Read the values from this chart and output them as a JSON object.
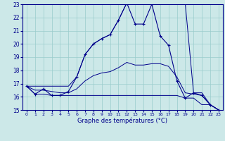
{
  "title": "Graphe des températures (°C)",
  "bg_color": "#cce8e8",
  "line_color": "#00008b",
  "grid_color": "#99cccc",
  "xlim": [
    -0.5,
    23.5
  ],
  "ylim": [
    15,
    23
  ],
  "x_ticks": [
    0,
    1,
    2,
    3,
    4,
    5,
    6,
    7,
    8,
    9,
    10,
    11,
    12,
    13,
    14,
    15,
    16,
    17,
    18,
    19,
    20,
    21,
    22,
    23
  ],
  "y_ticks": [
    15,
    16,
    17,
    18,
    19,
    20,
    21,
    22,
    23
  ],
  "main_series": [
    [
      0,
      16.8
    ],
    [
      1,
      16.2
    ],
    [
      2,
      16.6
    ],
    [
      3,
      16.1
    ],
    [
      4,
      16.1
    ],
    [
      5,
      16.4
    ],
    [
      6,
      17.5
    ],
    [
      7,
      19.2
    ],
    [
      8,
      20.0
    ],
    [
      9,
      20.4
    ],
    [
      10,
      20.7
    ],
    [
      11,
      21.8
    ],
    [
      12,
      23.1
    ],
    [
      13,
      21.5
    ],
    [
      14,
      21.5
    ],
    [
      15,
      23.0
    ],
    [
      16,
      20.6
    ],
    [
      17,
      19.9
    ],
    [
      18,
      17.2
    ],
    [
      19,
      15.9
    ],
    [
      20,
      16.3
    ],
    [
      21,
      16.1
    ],
    [
      22,
      15.4
    ],
    [
      23,
      15.0
    ]
  ],
  "min_series": [
    [
      0,
      16.8
    ],
    [
      1,
      16.2
    ],
    [
      2,
      16.2
    ],
    [
      3,
      16.1
    ],
    [
      4,
      16.1
    ],
    [
      5,
      16.1
    ],
    [
      6,
      16.1
    ],
    [
      7,
      16.1
    ],
    [
      8,
      16.1
    ],
    [
      9,
      16.1
    ],
    [
      10,
      16.1
    ],
    [
      11,
      16.1
    ],
    [
      12,
      16.1
    ],
    [
      13,
      16.1
    ],
    [
      14,
      16.1
    ],
    [
      15,
      16.1
    ],
    [
      16,
      16.1
    ],
    [
      17,
      16.1
    ],
    [
      18,
      16.1
    ],
    [
      19,
      15.9
    ],
    [
      20,
      15.9
    ],
    [
      21,
      15.4
    ],
    [
      22,
      15.4
    ],
    [
      23,
      15.0
    ]
  ],
  "max_series": [
    [
      0,
      16.8
    ],
    [
      1,
      16.8
    ],
    [
      2,
      16.8
    ],
    [
      3,
      16.8
    ],
    [
      4,
      16.8
    ],
    [
      5,
      16.8
    ],
    [
      6,
      17.5
    ],
    [
      7,
      19.2
    ],
    [
      8,
      20.0
    ],
    [
      9,
      20.4
    ],
    [
      10,
      20.7
    ],
    [
      11,
      21.8
    ],
    [
      12,
      23.1
    ],
    [
      13,
      23.1
    ],
    [
      14,
      23.1
    ],
    [
      15,
      23.1
    ],
    [
      16,
      23.1
    ],
    [
      17,
      23.1
    ],
    [
      18,
      23.1
    ],
    [
      19,
      23.1
    ],
    [
      20,
      16.3
    ],
    [
      21,
      16.3
    ],
    [
      22,
      15.4
    ],
    [
      23,
      15.0
    ]
  ],
  "avg_series": [
    [
      0,
      16.8
    ],
    [
      1,
      16.5
    ],
    [
      2,
      16.5
    ],
    [
      3,
      16.4
    ],
    [
      4,
      16.3
    ],
    [
      5,
      16.3
    ],
    [
      6,
      16.6
    ],
    [
      7,
      17.2
    ],
    [
      8,
      17.6
    ],
    [
      9,
      17.8
    ],
    [
      10,
      17.9
    ],
    [
      11,
      18.2
    ],
    [
      12,
      18.6
    ],
    [
      13,
      18.4
    ],
    [
      14,
      18.4
    ],
    [
      15,
      18.5
    ],
    [
      16,
      18.5
    ],
    [
      17,
      18.3
    ],
    [
      18,
      17.5
    ],
    [
      19,
      16.3
    ],
    [
      20,
      16.2
    ],
    [
      21,
      16.1
    ],
    [
      22,
      15.4
    ],
    [
      23,
      15.0
    ]
  ]
}
